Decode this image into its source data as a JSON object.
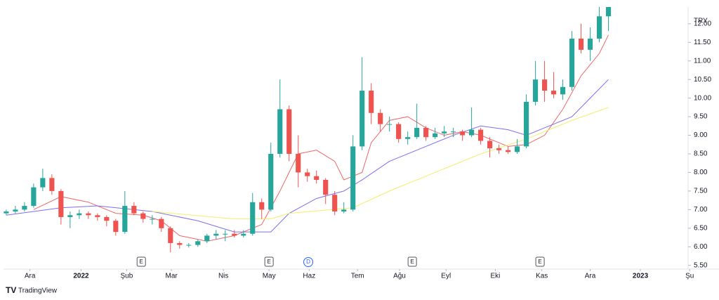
{
  "chart_data": {
    "type": "candlestick",
    "currency": "TRY",
    "brand": "TradingView",
    "up_color": "#26a69a",
    "down_color": "#ef5350",
    "grid": false,
    "open": [
      6.9,
      6.95,
      7.0,
      7.1,
      7.6,
      7.85,
      7.5,
      6.8,
      6.85,
      6.9,
      6.85,
      6.8,
      6.7,
      6.4,
      7.1,
      6.9,
      6.75,
      6.75,
      6.5,
      6.1,
      6.05,
      6.05,
      6.15,
      6.3,
      6.35,
      6.35,
      6.3,
      6.35,
      7.2,
      7.0,
      8.5,
      9.7,
      8.5,
      8.0,
      7.9,
      7.8,
      7.4,
      6.95,
      7.0,
      8.7,
      10.2,
      9.6,
      9.3,
      9.3,
      8.9,
      8.95,
      9.2,
      8.95,
      9.05,
      9.1,
      9.1,
      9.0,
      9.15,
      8.85,
      8.65,
      8.6,
      8.55,
      8.7,
      9.9,
      10.5,
      10.2,
      10.1,
      10.3,
      11.6,
      11.3,
      11.6,
      12.2
    ],
    "high": [
      7.0,
      7.1,
      7.2,
      7.7,
      8.1,
      7.95,
      7.55,
      6.95,
      7.0,
      6.95,
      6.9,
      6.85,
      6.75,
      7.5,
      7.2,
      6.95,
      6.85,
      6.8,
      6.55,
      6.15,
      6.1,
      6.2,
      6.35,
      6.45,
      6.45,
      6.45,
      6.45,
      7.45,
      7.3,
      8.8,
      10.5,
      9.8,
      9.0,
      8.1,
      8.05,
      7.85,
      7.5,
      7.2,
      9.0,
      11.1,
      10.4,
      9.7,
      9.5,
      9.35,
      9.1,
      9.85,
      9.25,
      9.2,
      9.25,
      9.2,
      9.15,
      9.75,
      9.2,
      8.95,
      8.75,
      8.7,
      8.9,
      10.1,
      11.0,
      11.0,
      10.7,
      10.5,
      11.8,
      12.0,
      11.9,
      12.5,
      12.6
    ],
    "low": [
      6.85,
      6.9,
      6.95,
      7.05,
      7.5,
      7.4,
      6.6,
      6.5,
      6.75,
      6.75,
      6.7,
      6.55,
      6.3,
      6.35,
      6.85,
      6.65,
      6.6,
      6.4,
      5.85,
      5.95,
      5.98,
      6.0,
      6.1,
      6.2,
      6.15,
      6.25,
      6.25,
      6.3,
      6.75,
      6.95,
      8.4,
      8.3,
      7.6,
      7.75,
      7.7,
      7.15,
      6.85,
      6.9,
      6.95,
      8.6,
      9.3,
      9.1,
      9.1,
      8.8,
      8.75,
      8.9,
      8.85,
      8.9,
      8.95,
      8.95,
      8.85,
      8.95,
      8.75,
      8.4,
      8.5,
      8.5,
      8.5,
      8.65,
      9.8,
      9.9,
      10.0,
      9.95,
      10.2,
      11.2,
      11.0,
      11.5,
      11.8
    ],
    "close": [
      6.95,
      7.0,
      7.1,
      7.6,
      7.85,
      7.5,
      6.8,
      6.85,
      6.9,
      6.85,
      6.8,
      6.7,
      6.4,
      7.1,
      6.9,
      6.75,
      6.75,
      6.5,
      6.1,
      6.05,
      6.05,
      6.15,
      6.3,
      6.35,
      6.35,
      6.3,
      6.35,
      7.2,
      7.0,
      8.5,
      9.7,
      8.5,
      8.0,
      7.9,
      7.8,
      7.4,
      6.95,
      7.0,
      8.7,
      10.2,
      9.6,
      9.3,
      9.3,
      8.9,
      8.95,
      9.2,
      8.95,
      9.05,
      9.1,
      9.1,
      9.0,
      9.15,
      8.85,
      8.65,
      8.6,
      8.55,
      8.7,
      9.9,
      10.5,
      10.2,
      10.1,
      10.3,
      11.6,
      11.3,
      11.6,
      12.2,
      12.5
    ],
    "series": [
      {
        "color": "#f06767",
        "x": [
          3,
          6,
          9,
          12,
          15,
          17,
          19,
          22,
          25,
          28,
          30,
          32,
          34,
          36,
          37,
          39,
          40,
          42,
          44,
          46,
          48,
          50,
          52,
          55,
          57,
          59,
          61,
          63,
          65,
          66
        ],
        "values": [
          7.0,
          7.35,
          7.2,
          6.9,
          6.85,
          6.7,
          6.3,
          6.15,
          6.3,
          6.6,
          7.5,
          8.5,
          8.6,
          8.3,
          7.8,
          8.0,
          8.8,
          9.4,
          9.5,
          9.2,
          9.0,
          9.1,
          9.0,
          8.7,
          8.75,
          9.0,
          9.7,
          10.6,
          11.2,
          11.7
        ]
      },
      {
        "color": "#7b6ff0",
        "x": [
          0,
          6,
          10,
          16,
          21,
          25,
          29,
          31,
          34,
          37,
          39,
          42,
          45,
          49,
          52,
          55,
          57,
          59,
          62,
          64,
          66
        ],
        "values": [
          6.85,
          7.05,
          7.1,
          6.95,
          6.7,
          6.4,
          6.4,
          6.9,
          7.3,
          7.5,
          7.8,
          8.3,
          8.6,
          9.0,
          9.25,
          9.15,
          9.0,
          9.2,
          9.5,
          10.0,
          10.5
        ]
      },
      {
        "color": "#f3ee6a",
        "x": [
          16,
          25,
          29,
          31,
          38,
          42,
          47,
          52,
          57,
          62,
          66
        ],
        "values": [
          6.95,
          6.75,
          6.75,
          6.9,
          7.05,
          7.5,
          8.0,
          8.5,
          8.9,
          9.4,
          9.75
        ]
      }
    ],
    "xlim": [
      -0.3,
      75.5
    ],
    "xticks": [
      {
        "value": 2.6,
        "label": "Ara"
      },
      {
        "value": 8.2,
        "label": "2022"
      },
      {
        "value": 13.2,
        "label": "Şub"
      },
      {
        "value": 18.1,
        "label": "Mar"
      },
      {
        "value": 23.8,
        "label": "Nis"
      },
      {
        "value": 28.8,
        "label": "May"
      },
      {
        "value": 33.2,
        "label": "Haz"
      },
      {
        "value": 38.5,
        "label": "Tem"
      },
      {
        "value": 43.1,
        "label": "Ağu"
      },
      {
        "value": 48.2,
        "label": "Eyl"
      },
      {
        "value": 53.6,
        "label": "Eki"
      },
      {
        "value": 58.7,
        "label": "Kas"
      },
      {
        "value": 64,
        "label": "Ara"
      },
      {
        "value": 69.5,
        "label": "2023"
      },
      {
        "value": 74.9,
        "label": "Şu"
      }
    ],
    "ylim": [
      5.4,
      12.45
    ],
    "yticks": [
      {
        "value": 5.5,
        "label": "5.50"
      },
      {
        "value": 6,
        "label": "6.00"
      },
      {
        "value": 6.5,
        "label": "6.50"
      },
      {
        "value": 7,
        "label": "7.00"
      },
      {
        "value": 7.5,
        "label": "7.50"
      },
      {
        "value": 8,
        "label": "8.00"
      },
      {
        "value": 8.5,
        "label": "8.50"
      },
      {
        "value": 9,
        "label": "9.00"
      },
      {
        "value": 9.5,
        "label": "9.50"
      },
      {
        "value": 10,
        "label": "10.00"
      },
      {
        "value": 10.5,
        "label": "10.50"
      },
      {
        "value": 11,
        "label": "11.00"
      },
      {
        "value": 11.5,
        "label": "11.50"
      },
      {
        "value": 12,
        "label": "12.00"
      }
    ],
    "events": [
      {
        "x": 14.8,
        "label": "E"
      },
      {
        "x": 28.8,
        "label": "E"
      },
      {
        "x": 33.1,
        "label": "D"
      },
      {
        "x": 44.5,
        "label": "E"
      },
      {
        "x": 58.5,
        "label": "E"
      }
    ]
  }
}
